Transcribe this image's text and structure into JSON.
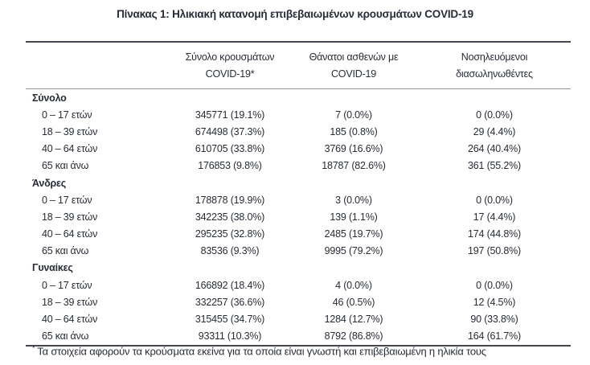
{
  "title": "Πίνακας 1: Ηλικιακή κατανομή επιβεβαιωμένων κρουσμάτων COVID-19",
  "table": {
    "col_headers": {
      "cases": {
        "line1": "Σύνολο κρουσμάτων",
        "line2": "COVID-19*"
      },
      "deaths": {
        "line1": "Θάνατοι ασθενών με",
        "line2": "COVID-19"
      },
      "intubated": {
        "line1": "Νοσηλευόμενοι",
        "line2": "διασωληνωθέντες"
      }
    },
    "sections": [
      {
        "label": "Σύνολο",
        "rows": [
          {
            "label": "0 – 17 ετών",
            "cases": "345771 (19.1%)",
            "deaths": "7 (0.0%)",
            "intubated": "0 (0.0%)"
          },
          {
            "label": "18 – 39 ετών",
            "cases": "674498 (37.3%)",
            "deaths": "185 (0.8%)",
            "intubated": "29 (4.4%)"
          },
          {
            "label": "40 – 64 ετών",
            "cases": "610705 (33.8%)",
            "deaths": "3769 (16.6%)",
            "intubated": "264 (40.4%)"
          },
          {
            "label": "65 και άνω",
            "cases": "176853 (9.8%)",
            "deaths": "18787 (82.6%)",
            "intubated": "361 (55.2%)"
          }
        ]
      },
      {
        "label": "Άνδρες",
        "rows": [
          {
            "label": "0 – 17 ετών",
            "cases": "178878 (19.9%)",
            "deaths": "3 (0.0%)",
            "intubated": "0 (0.0%)"
          },
          {
            "label": "18 – 39 ετών",
            "cases": "342235 (38.0%)",
            "deaths": "139 (1.1%)",
            "intubated": "17 (4.4%)"
          },
          {
            "label": "40 – 64 ετών",
            "cases": "295235 (32.8%)",
            "deaths": "2485 (19.7%)",
            "intubated": "174 (44.8%)"
          },
          {
            "label": "65 και άνω",
            "cases": "83536 (9.3%)",
            "deaths": "9995 (79.2%)",
            "intubated": "197 (50.8%)"
          }
        ]
      },
      {
        "label": "Γυναίκες",
        "rows": [
          {
            "label": "0 – 17 ετών",
            "cases": "166892 (18.4%)",
            "deaths": "4 (0.0%)",
            "intubated": "0 (0.0%)"
          },
          {
            "label": "18 – 39 ετών",
            "cases": "332257 (36.6%)",
            "deaths": "46 (0.5%)",
            "intubated": "12 (4.5%)"
          },
          {
            "label": "40 – 64 ετών",
            "cases": "315455 (34.7%)",
            "deaths": "1284 (12.7%)",
            "intubated": "90 (33.8%)"
          },
          {
            "label": "65 και άνω",
            "cases": "93311 (10.3%)",
            "deaths": "8792 (86.8%)",
            "intubated": "164 (61.7%)"
          }
        ]
      }
    ]
  },
  "footnote": {
    "marker": "*",
    "text": "Τα στοιχεία αφορούν τα κρούσματα εκείνα για τα οποία είναι γνωστή και επιβεβαιωμένη η ηλικία τους"
  },
  "colors": {
    "text": "#262c38",
    "rule_dark": "#43464d",
    "rule_light": "#91959b",
    "background": "#ffffff"
  }
}
